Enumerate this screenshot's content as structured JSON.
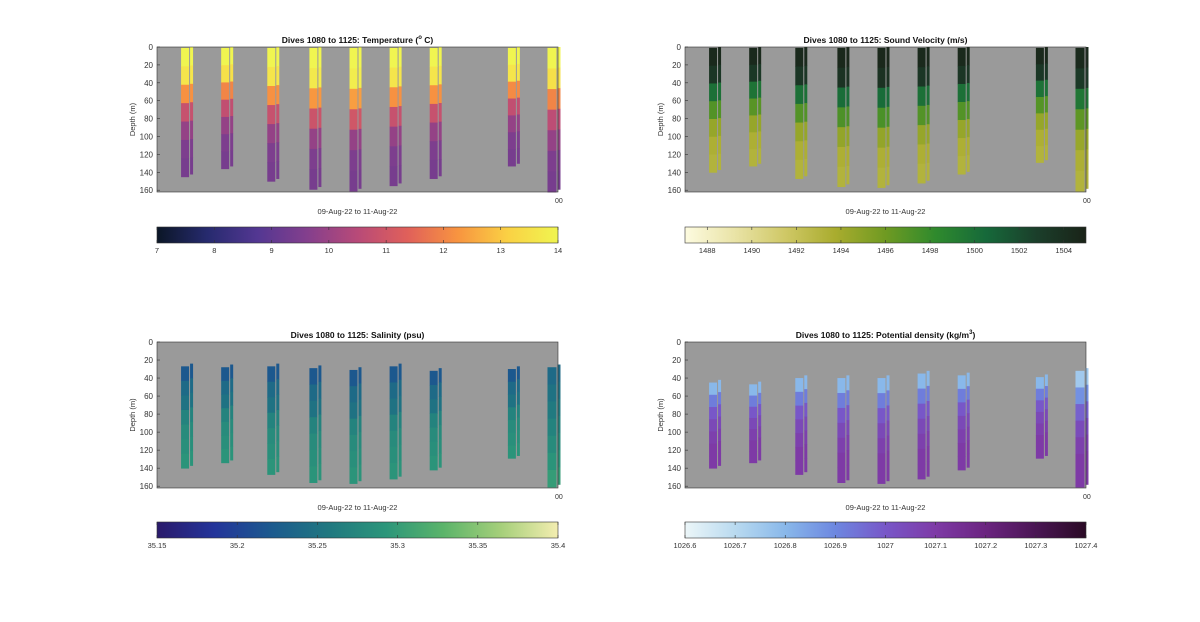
{
  "chart_data": [
    {
      "type": "heatmap",
      "title": "Dives 1080 to 1125: Temperature (",
      "title_sup": "o",
      "title_suffix": " C)",
      "ylabel": "Depth (m)",
      "xlabel": "09-Aug-22 to 11-Aug-22",
      "y_ticks": [
        0,
        20,
        40,
        60,
        80,
        100,
        120,
        140,
        160
      ],
      "ylim": [
        0,
        162
      ],
      "x_end_label": "00",
      "grid": false,
      "colorbar": {
        "ticks": [
          "7",
          "8",
          "9",
          "10",
          "11",
          "12",
          "13",
          "14"
        ],
        "range": [
          7,
          14
        ],
        "colors": [
          "#0b1626",
          "#262a6e",
          "#533792",
          "#843f8d",
          "#b84a78",
          "#e0605a",
          "#f89440",
          "#fad144",
          "#f0f550"
        ]
      },
      "profiles": [
        {
          "max_depth": 145,
          "values": [
            14,
            13.6,
            12.2,
            10.8,
            9.9,
            9.5,
            9.4
          ]
        },
        {
          "max_depth": 136,
          "values": [
            14,
            13.5,
            12.0,
            10.7,
            9.9,
            9.5,
            9.4
          ]
        },
        {
          "max_depth": 150,
          "values": [
            14,
            13.6,
            12.2,
            10.8,
            9.9,
            9.5,
            9.4
          ]
        },
        {
          "max_depth": 159,
          "values": [
            14,
            13.7,
            12.3,
            10.9,
            9.9,
            9.5,
            9.4
          ]
        },
        {
          "max_depth": 161,
          "values": [
            14,
            13.8,
            12.4,
            11.0,
            9.9,
            9.5,
            9.4
          ]
        },
        {
          "max_depth": 155,
          "values": [
            14,
            13.6,
            12.2,
            10.8,
            9.9,
            9.5,
            9.4
          ]
        },
        {
          "max_depth": 147,
          "values": [
            14,
            13.6,
            12.2,
            10.8,
            9.9,
            9.5,
            9.4
          ]
        },
        {
          "max_depth": 133,
          "values": [
            14,
            13.6,
            12.1,
            10.7,
            9.9,
            9.5,
            9.4
          ]
        },
        {
          "max_depth": 162,
          "values": [
            14,
            13.5,
            12.0,
            10.6,
            9.9,
            9.5,
            9.4
          ]
        }
      ]
    },
    {
      "type": "heatmap",
      "title": "Dives 1080 to 1125: Sound Velocity (m/s)",
      "title_sup": "",
      "title_suffix": "",
      "ylabel": "Depth (m)",
      "xlabel": "09-Aug-22 to 11-Aug-22",
      "y_ticks": [
        0,
        20,
        40,
        60,
        80,
        100,
        120,
        140,
        160
      ],
      "ylim": [
        0,
        162
      ],
      "x_end_label": "00",
      "grid": false,
      "colorbar": {
        "ticks": [
          "1488",
          "1490",
          "1492",
          "1494",
          "1496",
          "1498",
          "1500",
          "1502",
          "1504"
        ],
        "range": [
          1487,
          1505
        ],
        "colors": [
          "#fdfbe0",
          "#e9e3a6",
          "#cfc866",
          "#a9ac2e",
          "#6f9a22",
          "#2f8a2d",
          "#16693a",
          "#1b3f2b",
          "#1a2318"
        ]
      },
      "profiles": [
        {
          "max_depth": 140,
          "values": [
            1504.5,
            1503.5,
            1500,
            1497,
            1494.5,
            1493.5,
            1493.2
          ]
        },
        {
          "max_depth": 133,
          "values": [
            1504.5,
            1503.3,
            1499.8,
            1496.8,
            1494.5,
            1493.5,
            1493.2
          ]
        },
        {
          "max_depth": 147,
          "values": [
            1504.5,
            1503.5,
            1500,
            1497,
            1494.5,
            1493.5,
            1493.2
          ]
        },
        {
          "max_depth": 156,
          "values": [
            1504.6,
            1503.7,
            1500.2,
            1497.2,
            1494.6,
            1493.5,
            1493.2
          ]
        },
        {
          "max_depth": 157,
          "values": [
            1504.6,
            1503.8,
            1500.3,
            1497.3,
            1494.6,
            1493.5,
            1493.2
          ]
        },
        {
          "max_depth": 152,
          "values": [
            1504.5,
            1503.5,
            1500,
            1497,
            1494.5,
            1493.5,
            1493.2
          ]
        },
        {
          "max_depth": 142,
          "values": [
            1504.5,
            1503.5,
            1500,
            1497,
            1494.5,
            1493.5,
            1493.2
          ]
        },
        {
          "max_depth": 129,
          "values": [
            1504.5,
            1503.4,
            1499.9,
            1496.9,
            1494.5,
            1493.5,
            1493.2
          ]
        },
        {
          "max_depth": 161,
          "values": [
            1504.4,
            1503.2,
            1499.6,
            1496.6,
            1494.4,
            1493.5,
            1493.2
          ]
        }
      ]
    },
    {
      "type": "heatmap",
      "title": "Dives 1080 to 1125: Salinity (psu)",
      "title_sup": "",
      "title_suffix": "",
      "ylabel": "Depth (m)",
      "xlabel": "09-Aug-22 to 11-Aug-22",
      "y_ticks": [
        0,
        20,
        40,
        60,
        80,
        100,
        120,
        140,
        160
      ],
      "ylim": [
        0,
        162
      ],
      "x_end_label": "00",
      "grid": false,
      "colorbar": {
        "ticks": [
          "35.15",
          "35.2",
          "35.25",
          "35.3",
          "35.35",
          "35.4"
        ],
        "range": [
          35.15,
          35.4
        ],
        "colors": [
          "#2a1a6b",
          "#23349a",
          "#1c5a8e",
          "#207880",
          "#2c967a",
          "#5bb46a",
          "#a5cf7a",
          "#f3edb0"
        ]
      },
      "profiles": [
        {
          "min_depth": 27,
          "max_depth": 140,
          "values": [
            35.22,
            35.24,
            35.25,
            35.27,
            35.28,
            35.285,
            35.29
          ]
        },
        {
          "min_depth": 28,
          "max_depth": 134,
          "values": [
            35.22,
            35.24,
            35.25,
            35.27,
            35.28,
            35.285,
            35.29
          ]
        },
        {
          "min_depth": 27,
          "max_depth": 147,
          "values": [
            35.22,
            35.24,
            35.25,
            35.27,
            35.28,
            35.285,
            35.29
          ]
        },
        {
          "min_depth": 29,
          "max_depth": 156,
          "values": [
            35.22,
            35.24,
            35.25,
            35.27,
            35.28,
            35.285,
            35.29
          ]
        },
        {
          "min_depth": 31,
          "max_depth": 157,
          "values": [
            35.22,
            35.24,
            35.25,
            35.27,
            35.28,
            35.285,
            35.29
          ]
        },
        {
          "min_depth": 27,
          "max_depth": 152,
          "values": [
            35.22,
            35.24,
            35.25,
            35.27,
            35.28,
            35.285,
            35.29
          ]
        },
        {
          "min_depth": 32,
          "max_depth": 142,
          "values": [
            35.22,
            35.24,
            35.25,
            35.27,
            35.28,
            35.285,
            35.29
          ]
        },
        {
          "min_depth": 30,
          "max_depth": 129,
          "values": [
            35.22,
            35.24,
            35.25,
            35.27,
            35.28,
            35.285,
            35.29
          ]
        },
        {
          "min_depth": 28,
          "max_depth": 161,
          "values": [
            35.24,
            35.25,
            35.26,
            35.27,
            35.28,
            35.29,
            35.3
          ]
        }
      ]
    },
    {
      "type": "heatmap",
      "title": "Dives 1080 to 1125: Potential density (kg/m",
      "title_sup": "3",
      "title_suffix": ")",
      "ylabel": "Depth (m)",
      "xlabel": "09-Aug-22 to 11-Aug-22",
      "y_ticks": [
        0,
        20,
        40,
        60,
        80,
        100,
        120,
        140,
        160
      ],
      "ylim": [
        0,
        162
      ],
      "x_end_label": "00",
      "grid": false,
      "colorbar": {
        "ticks": [
          "1026.6",
          "1026.7",
          "1026.8",
          "1026.9",
          "1027",
          "1027.1",
          "1027.2",
          "1027.3",
          "1027.4"
        ],
        "range": [
          1026.6,
          1027.4
        ],
        "colors": [
          "#ecf6f8",
          "#b9daf0",
          "#89b8ea",
          "#6d87e0",
          "#7857c8",
          "#7e3aa6",
          "#6b2480",
          "#4a1654",
          "#2a0a25"
        ]
      },
      "profiles": [
        {
          "min_depth": 45,
          "max_depth": 140,
          "values": [
            1026.8,
            1026.92,
            1027.0,
            1027.05,
            1027.08,
            1027.1,
            1027.1
          ]
        },
        {
          "min_depth": 47,
          "max_depth": 134,
          "values": [
            1026.8,
            1026.92,
            1027.0,
            1027.05,
            1027.08,
            1027.1,
            1027.1
          ]
        },
        {
          "min_depth": 40,
          "max_depth": 147,
          "values": [
            1026.8,
            1026.92,
            1027.0,
            1027.05,
            1027.08,
            1027.1,
            1027.1
          ]
        },
        {
          "min_depth": 40,
          "max_depth": 156,
          "values": [
            1026.8,
            1026.92,
            1027.0,
            1027.05,
            1027.08,
            1027.1,
            1027.1
          ]
        },
        {
          "min_depth": 40,
          "max_depth": 157,
          "values": [
            1026.8,
            1026.92,
            1027.0,
            1027.05,
            1027.08,
            1027.1,
            1027.1
          ]
        },
        {
          "min_depth": 35,
          "max_depth": 152,
          "values": [
            1026.8,
            1026.92,
            1027.0,
            1027.05,
            1027.08,
            1027.1,
            1027.1
          ]
        },
        {
          "min_depth": 37,
          "max_depth": 142,
          "values": [
            1026.8,
            1026.92,
            1027.0,
            1027.05,
            1027.08,
            1027.1,
            1027.1
          ]
        },
        {
          "min_depth": 39,
          "max_depth": 129,
          "values": [
            1026.8,
            1026.92,
            1027.0,
            1027.05,
            1027.08,
            1027.1,
            1027.1
          ]
        },
        {
          "min_depth": 32,
          "max_depth": 161,
          "values": [
            1026.75,
            1026.88,
            1026.98,
            1027.04,
            1027.08,
            1027.1,
            1027.1
          ]
        }
      ]
    }
  ],
  "colors": {
    "background_gray": "#9a9a9a",
    "axis": "#333333",
    "figure_background": "#ffffff"
  }
}
